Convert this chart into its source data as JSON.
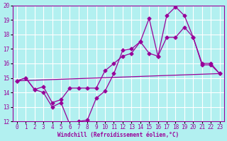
{
  "background_color": "#b2f0f0",
  "grid_color": "#ffffff",
  "line_color": "#990099",
  "xlabel": "Windchill (Refroidissement éolien,°C)",
  "xlim": [
    -0.5,
    23.5
  ],
  "ylim": [
    12,
    20
  ],
  "yticks": [
    12,
    13,
    14,
    15,
    16,
    17,
    18,
    19,
    20
  ],
  "xticks": [
    0,
    1,
    2,
    3,
    4,
    5,
    6,
    7,
    8,
    9,
    10,
    11,
    12,
    13,
    14,
    15,
    16,
    17,
    18,
    19,
    20,
    21,
    22,
    23
  ],
  "series1": {
    "x": [
      0,
      1,
      2,
      3,
      4,
      5,
      6,
      7,
      8,
      9,
      10,
      11,
      12,
      13,
      14,
      15,
      16,
      17,
      18,
      19,
      20,
      21,
      22,
      23
    ],
    "y": [
      14.8,
      15.0,
      14.2,
      14.0,
      13.0,
      13.3,
      11.8,
      12.0,
      12.1,
      13.6,
      14.1,
      15.3,
      16.9,
      17.0,
      17.5,
      19.1,
      16.5,
      19.3,
      19.9,
      19.3,
      17.8,
      16.0,
      16.0,
      15.3
    ]
  },
  "series2": {
    "x": [
      0,
      1,
      2,
      3,
      4,
      5,
      6,
      7,
      8,
      9,
      10,
      11,
      12,
      13,
      14,
      15,
      16,
      17,
      18,
      19,
      20,
      21,
      22,
      23
    ],
    "y": [
      14.8,
      15.0,
      14.2,
      14.4,
      13.3,
      13.5,
      14.3,
      14.3,
      14.3,
      14.3,
      15.5,
      16.0,
      16.5,
      16.7,
      17.5,
      16.7,
      16.5,
      17.8,
      17.8,
      18.5,
      17.8,
      15.9,
      15.9,
      15.3
    ]
  },
  "series3": {
    "x": [
      0,
      23
    ],
    "y": [
      14.8,
      15.3
    ]
  }
}
